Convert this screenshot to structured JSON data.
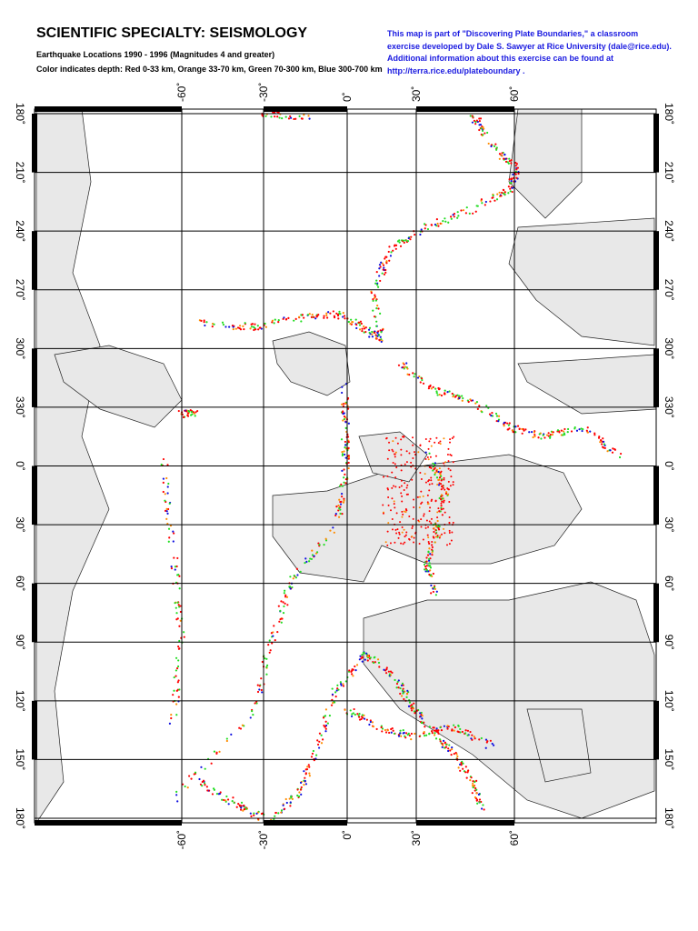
{
  "header": {
    "title": "SCIENTIFIC SPECIALTY: SEISMOLOGY",
    "subtitle": "Earthquake Locations  1990 - 1996 (Magnitudes 4 and greater)",
    "depth_key": "Color indicates depth: Red 0-33 km, Orange 33-70 km, Green 70-300 km, Blue 300-700 km",
    "note": [
      "This map is part of \"Discovering Plate Boundaries,\" a classroom",
      "exercise developed by Dale S. Sawyer at Rice University (dale@rice.edu).",
      "Additional information about this exercise can be found at",
      "http://terra.rice.edu/plateboundary ."
    ]
  },
  "map": {
    "column_labels": [
      "-60˚",
      "-30˚",
      "0˚",
      "30˚",
      "60˚"
    ],
    "row_labels": [
      "180˚",
      "210˚",
      "240˚",
      "270˚",
      "300˚",
      "330˚",
      "0˚",
      "30˚",
      "60˚",
      "90˚",
      "120˚",
      "150˚",
      "180˚"
    ]
  }
}
